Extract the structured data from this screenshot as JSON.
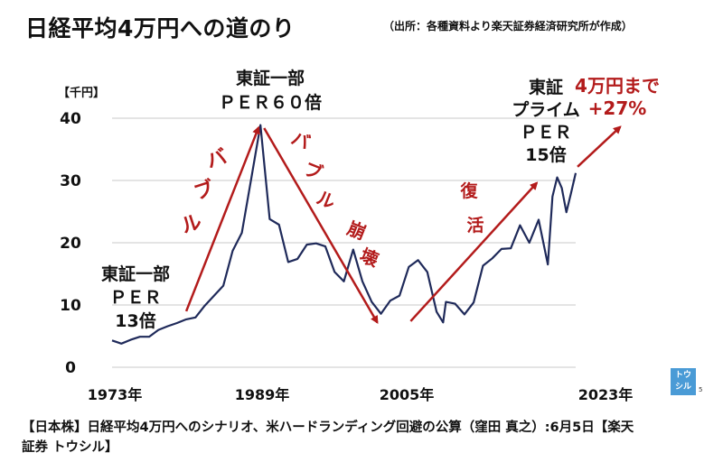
{
  "header": {
    "title": "日経平均4万円への道のり",
    "source": "（出所：各種資料より楽天証券経済研究所が作成）"
  },
  "footer": {
    "caption_line1": "【日本株】日経平均4万円へのシナリオ、米ハードランディング回避の公算（窪田 真之）:6月5日【楽天",
    "caption_line2": "証券 トウシル】"
  },
  "logo": {
    "line1": "トウ",
    "line2": "シル",
    "small": "5"
  },
  "chart_data": {
    "type": "line",
    "title": "日経平均4万円への道のり",
    "unit_label": "【千円】",
    "ylim": [
      0,
      40
    ],
    "ytick_labels": [
      "0",
      "10",
      "20",
      "30",
      "40"
    ],
    "xlim": [
      1973,
      2023
    ],
    "xtick_labels": [
      {
        "x": 1973,
        "label": "1973年"
      },
      {
        "x": 1989,
        "label": "1989年"
      },
      {
        "x": 2005,
        "label": "2005年"
      },
      {
        "x": 2023,
        "label": "2023年"
      }
    ],
    "grid": true,
    "line_color": "#1f2a5a",
    "arrow_color": "#b31b1b",
    "series": [
      {
        "points": [
          [
            1973,
            4.3
          ],
          [
            1974,
            3.8
          ],
          [
            1975,
            4.4
          ],
          [
            1976,
            4.9
          ],
          [
            1977,
            4.9
          ],
          [
            1978,
            6.0
          ],
          [
            1979,
            6.6
          ],
          [
            1980,
            7.1
          ],
          [
            1981,
            7.7
          ],
          [
            1982,
            8.0
          ],
          [
            1983,
            9.9
          ],
          [
            1984,
            11.5
          ],
          [
            1985,
            13.1
          ],
          [
            1986,
            18.7
          ],
          [
            1987,
            21.6
          ],
          [
            1988,
            30.2
          ],
          [
            1989,
            38.9
          ],
          [
            1990,
            23.8
          ],
          [
            1991,
            22.9
          ],
          [
            1992,
            16.9
          ],
          [
            1993,
            17.4
          ],
          [
            1994,
            19.7
          ],
          [
            1995,
            19.9
          ],
          [
            1996,
            19.4
          ],
          [
            1997,
            15.3
          ],
          [
            1998,
            13.8
          ],
          [
            1999,
            18.9
          ],
          [
            2000,
            13.8
          ],
          [
            2001,
            10.5
          ],
          [
            2002,
            8.6
          ],
          [
            2003,
            10.7
          ],
          [
            2004,
            11.5
          ],
          [
            2005,
            16.1
          ],
          [
            2006,
            17.2
          ],
          [
            2007,
            15.3
          ],
          [
            2008,
            8.9
          ],
          [
            2008.7,
            7.2
          ],
          [
            2009,
            10.5
          ],
          [
            2010,
            10.2
          ],
          [
            2011,
            8.5
          ],
          [
            2012,
            10.4
          ],
          [
            2013,
            16.3
          ],
          [
            2014,
            17.5
          ],
          [
            2015,
            19.0
          ],
          [
            2016,
            19.1
          ],
          [
            2017,
            22.8
          ],
          [
            2018,
            20.0
          ],
          [
            2019,
            23.7
          ],
          [
            2020,
            16.5
          ],
          [
            2020.5,
            27.4
          ],
          [
            2021,
            30.5
          ],
          [
            2021.5,
            28.8
          ],
          [
            2022,
            24.9
          ],
          [
            2022.5,
            28.0
          ],
          [
            2023,
            31.2
          ]
        ]
      }
    ],
    "annotations": [
      {
        "id": "per13",
        "lines": [
          "東証一部",
          "ＰＥＲ",
          "13倍"
        ],
        "color": "#111"
      },
      {
        "id": "per60",
        "lines": [
          "東証一部",
          "ＰＥＲ６０倍"
        ],
        "color": "#111"
      },
      {
        "id": "per15",
        "lines": [
          "東証",
          "プライム",
          "ＰＥＲ",
          "15倍"
        ],
        "color": "#111"
      },
      {
        "id": "target",
        "lines": [
          "4万円まで",
          "+27%"
        ],
        "color": "#b31b1b"
      },
      {
        "id": "bubble",
        "chars": [
          "バ",
          "ブ",
          "ル"
        ],
        "color": "#b31b1b"
      },
      {
        "id": "collapse",
        "chars": [
          "バ",
          "ブ",
          "ル",
          "崩",
          "壊"
        ],
        "color": "#b31b1b"
      },
      {
        "id": "revival",
        "chars": [
          "復",
          "活"
        ],
        "color": "#b31b1b"
      }
    ],
    "arrows": [
      {
        "from": [
          1981,
          9.0
        ],
        "to": [
          1988.8,
          38.5
        ]
      },
      {
        "from": [
          1989.4,
          38.4
        ],
        "to": [
          2001.6,
          7.2
        ]
      },
      {
        "from": [
          2005.2,
          7.4
        ],
        "to": [
          2018.8,
          29.6
        ]
      },
      {
        "from": [
          2023.2,
          32.2
        ],
        "to": [
          2027.8,
          38.6
        ]
      }
    ]
  }
}
